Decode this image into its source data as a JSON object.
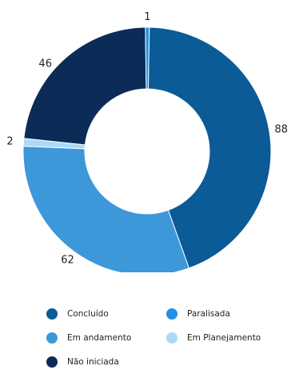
{
  "chart_data": {
    "type": "pie",
    "title": "",
    "subtitle": "",
    "donut": true,
    "legend_position": "bottom",
    "slices": [
      {
        "name": "Concluído",
        "value": 88,
        "label": "88",
        "color": "#0a5b96"
      },
      {
        "name": "Em andamento",
        "value": 62,
        "label": "62",
        "color": "#3d98da"
      },
      {
        "name": "Em Planejamento",
        "value": 2,
        "label": "2",
        "color": "#aadaf5"
      },
      {
        "name": "Não iniciada",
        "value": 46,
        "label": "46",
        "color": "#0c2c57"
      },
      {
        "name": "Paralisada",
        "value": 1,
        "label": "1",
        "color": "#2191e3"
      }
    ],
    "legend": [
      {
        "name": "Concluído",
        "color": "#0a5b96"
      },
      {
        "name": "Paralisada",
        "color": "#2191e3"
      },
      {
        "name": "Em andamento",
        "color": "#3d98da"
      },
      {
        "name": "Em Planejamento",
        "color": "#aadaf5"
      },
      {
        "name": "Não iniciada",
        "color": "#0c2c57"
      }
    ]
  }
}
